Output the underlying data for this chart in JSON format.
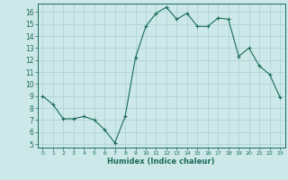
{
  "x": [
    0,
    1,
    2,
    3,
    4,
    5,
    6,
    7,
    8,
    9,
    10,
    11,
    12,
    13,
    14,
    15,
    16,
    17,
    18,
    19,
    20,
    21,
    22,
    23
  ],
  "y": [
    9,
    8.3,
    7.1,
    7.1,
    7.3,
    7.0,
    6.2,
    5.1,
    7.3,
    12.2,
    14.8,
    15.9,
    16.4,
    15.4,
    15.9,
    14.8,
    14.8,
    15.5,
    15.4,
    12.3,
    13.0,
    11.5,
    10.8,
    8.9
  ],
  "line_color": "#1a6b5a",
  "marker": "+",
  "marker_size": 3,
  "bg_color": "#cce8e8",
  "grid_color": "#aad0d0",
  "xlabel": "Humidex (Indice chaleur)",
  "xlim": [
    -0.5,
    23.5
  ],
  "ylim": [
    4.7,
    16.7
  ],
  "yticks": [
    5,
    6,
    7,
    8,
    9,
    10,
    11,
    12,
    13,
    14,
    15,
    16
  ],
  "xticks": [
    0,
    1,
    2,
    3,
    4,
    5,
    6,
    7,
    8,
    9,
    10,
    11,
    12,
    13,
    14,
    15,
    16,
    17,
    18,
    19,
    20,
    21,
    22,
    23
  ],
  "tick_color": "#1a6b5a",
  "label_color": "#1a6b5a",
  "axis_color": "#1a6b5a",
  "xlabel_fontsize": 6.0,
  "xtick_fontsize": 4.5,
  "ytick_fontsize": 5.5
}
